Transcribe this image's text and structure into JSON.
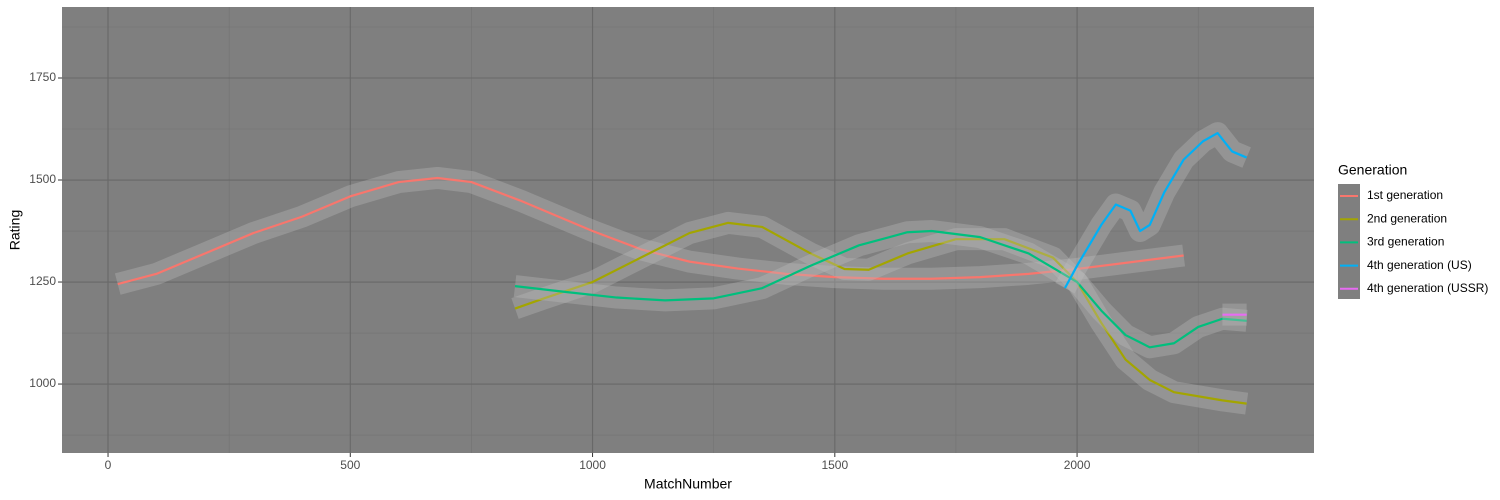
{
  "chart_data": {
    "type": "line",
    "x_label": "MatchNumber",
    "y_label": "Rating",
    "legend_title": "Generation",
    "xlim": [
      -95,
      2489
    ],
    "ylim": [
      831,
      1924
    ],
    "xticks": [
      0,
      500,
      1000,
      1500,
      2000
    ],
    "yticks": [
      1000,
      1250,
      1500,
      1750
    ],
    "grid": true,
    "legend": "right",
    "series": [
      {
        "name": "1st generation",
        "color": "#F8766D",
        "x": [
          20,
          100,
          200,
          300,
          400,
          500,
          600,
          680,
          750,
          850,
          1000,
          1100,
          1200,
          1300,
          1400,
          1500,
          1600,
          1700,
          1800,
          1900,
          2000,
          2100,
          2220
        ],
        "values": [
          1245,
          1270,
          1320,
          1370,
          1410,
          1460,
          1495,
          1505,
          1495,
          1450,
          1375,
          1330,
          1300,
          1283,
          1270,
          1262,
          1258,
          1258,
          1262,
          1270,
          1282,
          1297,
          1315
        ]
      },
      {
        "name": "2nd generation",
        "color": "#A3A500",
        "x": [
          840,
          900,
          1000,
          1100,
          1200,
          1280,
          1350,
          1450,
          1520,
          1570,
          1650,
          1750,
          1850,
          1950,
          2000,
          2050,
          2100,
          2150,
          2200,
          2300,
          2350
        ],
        "values": [
          1185,
          1210,
          1250,
          1310,
          1370,
          1395,
          1385,
          1320,
          1282,
          1280,
          1320,
          1355,
          1355,
          1310,
          1250,
          1150,
          1060,
          1010,
          980,
          960,
          952
        ]
      },
      {
        "name": "3rd generation",
        "color": "#00BF7D",
        "x": [
          840,
          950,
          1050,
          1150,
          1250,
          1350,
          1450,
          1550,
          1650,
          1700,
          1800,
          1900,
          2000,
          2050,
          2100,
          2150,
          2200,
          2250,
          2300,
          2350
        ],
        "values": [
          1240,
          1225,
          1212,
          1205,
          1210,
          1235,
          1290,
          1340,
          1372,
          1375,
          1360,
          1320,
          1250,
          1180,
          1120,
          1090,
          1100,
          1140,
          1160,
          1155
        ]
      },
      {
        "name": "4th generation (US)",
        "color": "#00B0F6",
        "x": [
          1975,
          2000,
          2050,
          2080,
          2110,
          2130,
          2150,
          2180,
          2220,
          2260,
          2290,
          2320,
          2350
        ],
        "values": [
          1235,
          1290,
          1390,
          1440,
          1425,
          1375,
          1390,
          1470,
          1550,
          1595,
          1615,
          1570,
          1555
        ]
      },
      {
        "name": "4th generation (USSR)",
        "color": "#E76BF3",
        "x": [
          2300,
          2350
        ],
        "values": [
          1170,
          1170
        ]
      }
    ]
  }
}
